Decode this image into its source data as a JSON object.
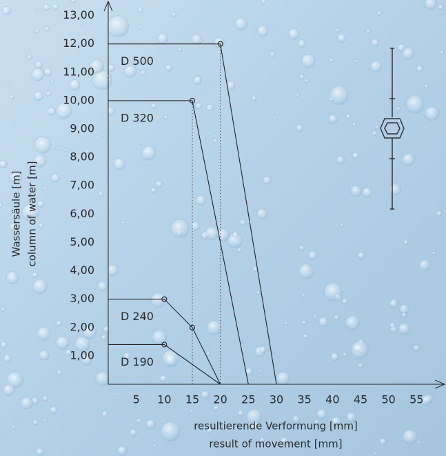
{
  "chart_data": {
    "type": "line",
    "y_label": [
      "Wassersäule [m]",
      "column of water [m]"
    ],
    "x_label": [
      "resultierende Verformung [mm]",
      "result of movement [mm]"
    ],
    "xlim": [
      0,
      60
    ],
    "ylim": [
      0,
      13.5
    ],
    "xticks": [
      5,
      10,
      15,
      20,
      25,
      30,
      35,
      40,
      45,
      50,
      55
    ],
    "yticks": [
      {
        "value": 1,
        "label": "1,00"
      },
      {
        "value": 2,
        "label": "2,00"
      },
      {
        "value": 3,
        "label": "3,00"
      },
      {
        "value": 4,
        "label": "4,00"
      },
      {
        "value": 5,
        "label": "5,00"
      },
      {
        "value": 6,
        "label": "6,00"
      },
      {
        "value": 7,
        "label": "7,00"
      },
      {
        "value": 8,
        "label": "8,00"
      },
      {
        "value": 9,
        "label": "9,00"
      },
      {
        "value": 10,
        "label": "10,00"
      },
      {
        "value": 11,
        "label": "11,00"
      },
      {
        "value": 12,
        "label": "12,00"
      },
      {
        "value": 13,
        "label": "13,00"
      }
    ],
    "grid": false,
    "color": "#222222",
    "series": [
      {
        "name": "D 500",
        "x": [
          0,
          20,
          30
        ],
        "values": [
          12,
          12,
          0
        ],
        "droplines": true
      },
      {
        "name": "D 320",
        "x": [
          0,
          15,
          25
        ],
        "values": [
          10,
          10,
          0
        ],
        "droplines": true
      },
      {
        "name": "D 240",
        "x": [
          0,
          10,
          15,
          20
        ],
        "values": [
          3,
          3,
          2,
          0
        ],
        "droplines": false
      },
      {
        "name": "D 190",
        "x": [
          0,
          10,
          20
        ],
        "values": [
          1.4,
          1.4,
          0
        ],
        "droplines": false
      }
    ]
  }
}
